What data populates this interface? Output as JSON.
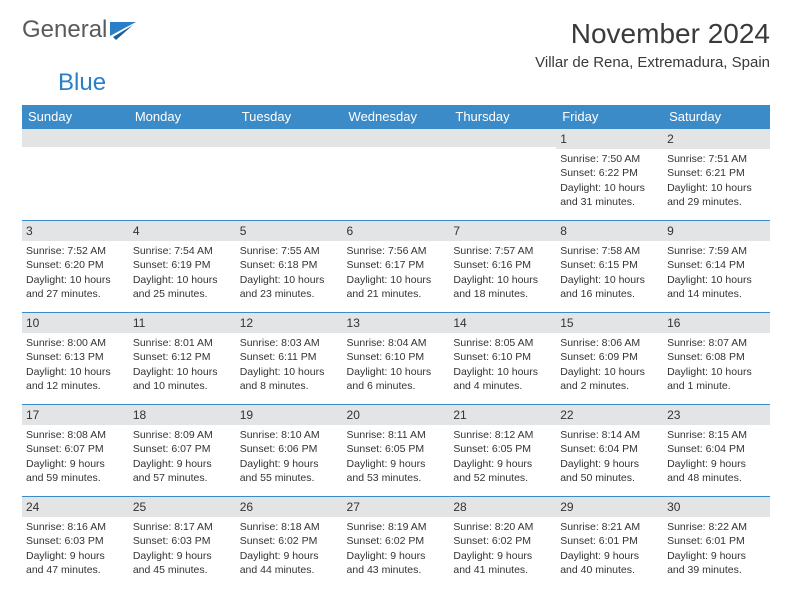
{
  "brand": {
    "part1": "General",
    "part2": "Blue"
  },
  "title": "November 2024",
  "location": "Villar de Rena, Extremadura, Spain",
  "colors": {
    "header_bg": "#3b8bc9",
    "header_fg": "#ffffff",
    "daynum_bg": "#e2e4e6",
    "border": "#3b8bc9",
    "text": "#333333",
    "brand_gray": "#5a5a5a",
    "brand_blue": "#2a7fc9"
  },
  "weekdays": [
    "Sunday",
    "Monday",
    "Tuesday",
    "Wednesday",
    "Thursday",
    "Friday",
    "Saturday"
  ],
  "weeks": [
    [
      {
        "day": "",
        "sunrise": "",
        "sunset": "",
        "daylight": ""
      },
      {
        "day": "",
        "sunrise": "",
        "sunset": "",
        "daylight": ""
      },
      {
        "day": "",
        "sunrise": "",
        "sunset": "",
        "daylight": ""
      },
      {
        "day": "",
        "sunrise": "",
        "sunset": "",
        "daylight": ""
      },
      {
        "day": "",
        "sunrise": "",
        "sunset": "",
        "daylight": ""
      },
      {
        "day": "1",
        "sunrise": "Sunrise: 7:50 AM",
        "sunset": "Sunset: 6:22 PM",
        "daylight": "Daylight: 10 hours and 31 minutes."
      },
      {
        "day": "2",
        "sunrise": "Sunrise: 7:51 AM",
        "sunset": "Sunset: 6:21 PM",
        "daylight": "Daylight: 10 hours and 29 minutes."
      }
    ],
    [
      {
        "day": "3",
        "sunrise": "Sunrise: 7:52 AM",
        "sunset": "Sunset: 6:20 PM",
        "daylight": "Daylight: 10 hours and 27 minutes."
      },
      {
        "day": "4",
        "sunrise": "Sunrise: 7:54 AM",
        "sunset": "Sunset: 6:19 PM",
        "daylight": "Daylight: 10 hours and 25 minutes."
      },
      {
        "day": "5",
        "sunrise": "Sunrise: 7:55 AM",
        "sunset": "Sunset: 6:18 PM",
        "daylight": "Daylight: 10 hours and 23 minutes."
      },
      {
        "day": "6",
        "sunrise": "Sunrise: 7:56 AM",
        "sunset": "Sunset: 6:17 PM",
        "daylight": "Daylight: 10 hours and 21 minutes."
      },
      {
        "day": "7",
        "sunrise": "Sunrise: 7:57 AM",
        "sunset": "Sunset: 6:16 PM",
        "daylight": "Daylight: 10 hours and 18 minutes."
      },
      {
        "day": "8",
        "sunrise": "Sunrise: 7:58 AM",
        "sunset": "Sunset: 6:15 PM",
        "daylight": "Daylight: 10 hours and 16 minutes."
      },
      {
        "day": "9",
        "sunrise": "Sunrise: 7:59 AM",
        "sunset": "Sunset: 6:14 PM",
        "daylight": "Daylight: 10 hours and 14 minutes."
      }
    ],
    [
      {
        "day": "10",
        "sunrise": "Sunrise: 8:00 AM",
        "sunset": "Sunset: 6:13 PM",
        "daylight": "Daylight: 10 hours and 12 minutes."
      },
      {
        "day": "11",
        "sunrise": "Sunrise: 8:01 AM",
        "sunset": "Sunset: 6:12 PM",
        "daylight": "Daylight: 10 hours and 10 minutes."
      },
      {
        "day": "12",
        "sunrise": "Sunrise: 8:03 AM",
        "sunset": "Sunset: 6:11 PM",
        "daylight": "Daylight: 10 hours and 8 minutes."
      },
      {
        "day": "13",
        "sunrise": "Sunrise: 8:04 AM",
        "sunset": "Sunset: 6:10 PM",
        "daylight": "Daylight: 10 hours and 6 minutes."
      },
      {
        "day": "14",
        "sunrise": "Sunrise: 8:05 AM",
        "sunset": "Sunset: 6:10 PM",
        "daylight": "Daylight: 10 hours and 4 minutes."
      },
      {
        "day": "15",
        "sunrise": "Sunrise: 8:06 AM",
        "sunset": "Sunset: 6:09 PM",
        "daylight": "Daylight: 10 hours and 2 minutes."
      },
      {
        "day": "16",
        "sunrise": "Sunrise: 8:07 AM",
        "sunset": "Sunset: 6:08 PM",
        "daylight": "Daylight: 10 hours and 1 minute."
      }
    ],
    [
      {
        "day": "17",
        "sunrise": "Sunrise: 8:08 AM",
        "sunset": "Sunset: 6:07 PM",
        "daylight": "Daylight: 9 hours and 59 minutes."
      },
      {
        "day": "18",
        "sunrise": "Sunrise: 8:09 AM",
        "sunset": "Sunset: 6:07 PM",
        "daylight": "Daylight: 9 hours and 57 minutes."
      },
      {
        "day": "19",
        "sunrise": "Sunrise: 8:10 AM",
        "sunset": "Sunset: 6:06 PM",
        "daylight": "Daylight: 9 hours and 55 minutes."
      },
      {
        "day": "20",
        "sunrise": "Sunrise: 8:11 AM",
        "sunset": "Sunset: 6:05 PM",
        "daylight": "Daylight: 9 hours and 53 minutes."
      },
      {
        "day": "21",
        "sunrise": "Sunrise: 8:12 AM",
        "sunset": "Sunset: 6:05 PM",
        "daylight": "Daylight: 9 hours and 52 minutes."
      },
      {
        "day": "22",
        "sunrise": "Sunrise: 8:14 AM",
        "sunset": "Sunset: 6:04 PM",
        "daylight": "Daylight: 9 hours and 50 minutes."
      },
      {
        "day": "23",
        "sunrise": "Sunrise: 8:15 AM",
        "sunset": "Sunset: 6:04 PM",
        "daylight": "Daylight: 9 hours and 48 minutes."
      }
    ],
    [
      {
        "day": "24",
        "sunrise": "Sunrise: 8:16 AM",
        "sunset": "Sunset: 6:03 PM",
        "daylight": "Daylight: 9 hours and 47 minutes."
      },
      {
        "day": "25",
        "sunrise": "Sunrise: 8:17 AM",
        "sunset": "Sunset: 6:03 PM",
        "daylight": "Daylight: 9 hours and 45 minutes."
      },
      {
        "day": "26",
        "sunrise": "Sunrise: 8:18 AM",
        "sunset": "Sunset: 6:02 PM",
        "daylight": "Daylight: 9 hours and 44 minutes."
      },
      {
        "day": "27",
        "sunrise": "Sunrise: 8:19 AM",
        "sunset": "Sunset: 6:02 PM",
        "daylight": "Daylight: 9 hours and 43 minutes."
      },
      {
        "day": "28",
        "sunrise": "Sunrise: 8:20 AM",
        "sunset": "Sunset: 6:02 PM",
        "daylight": "Daylight: 9 hours and 41 minutes."
      },
      {
        "day": "29",
        "sunrise": "Sunrise: 8:21 AM",
        "sunset": "Sunset: 6:01 PM",
        "daylight": "Daylight: 9 hours and 40 minutes."
      },
      {
        "day": "30",
        "sunrise": "Sunrise: 8:22 AM",
        "sunset": "Sunset: 6:01 PM",
        "daylight": "Daylight: 9 hours and 39 minutes."
      }
    ]
  ]
}
